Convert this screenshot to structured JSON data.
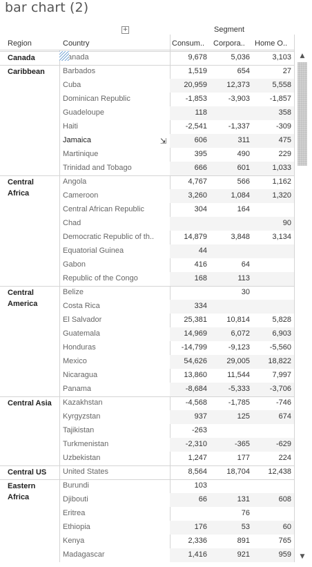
{
  "title": "bar chart (2)",
  "segment_label": "Segment",
  "headers": {
    "region": "Region",
    "country": "Country",
    "consumer": "Consum..",
    "corporate": "Corpora..",
    "home_office": "Home O.."
  },
  "rows": [
    {
      "region": "Canada",
      "country": "anada",
      "v1": "9,678",
      "v2": "5,036",
      "v3": "3,103"
    },
    {
      "region": "Caribbean",
      "country": "Barbados",
      "v1": "1,519",
      "v2": "654",
      "v3": "27"
    },
    {
      "region": "",
      "country": "Cuba",
      "v1": "20,959",
      "v2": "12,373",
      "v3": "5,558"
    },
    {
      "region": "",
      "country": "Dominican Republic",
      "v1": "-1,853",
      "v2": "-3,903",
      "v3": "-1,857"
    },
    {
      "region": "",
      "country": "Guadeloupe",
      "v1": "118",
      "v2": "",
      "v3": "358"
    },
    {
      "region": "",
      "country": "Haiti",
      "v1": "-2,541",
      "v2": "-1,337",
      "v3": "-309"
    },
    {
      "region": "",
      "country": "Jamaica",
      "v1": "606",
      "v2": "311",
      "v3": "475"
    },
    {
      "region": "",
      "country": "Martinique",
      "v1": "395",
      "v2": "490",
      "v3": "229"
    },
    {
      "region": "",
      "country": "Trinidad and Tobago",
      "v1": "666",
      "v2": "601",
      "v3": "1,033"
    },
    {
      "region": "Central Africa",
      "country": "Angola",
      "v1": "4,767",
      "v2": "566",
      "v3": "1,162"
    },
    {
      "region": "",
      "country": "Cameroon",
      "v1": "3,260",
      "v2": "1,084",
      "v3": "1,320"
    },
    {
      "region": "",
      "country": "Central African Republic",
      "v1": "304",
      "v2": "164",
      "v3": ""
    },
    {
      "region": "",
      "country": "Chad",
      "v1": "",
      "v2": "",
      "v3": "90"
    },
    {
      "region": "",
      "country": "Democratic Republic of th..",
      "v1": "14,879",
      "v2": "3,848",
      "v3": "3,134"
    },
    {
      "region": "",
      "country": "Equatorial Guinea",
      "v1": "44",
      "v2": "",
      "v3": ""
    },
    {
      "region": "",
      "country": "Gabon",
      "v1": "416",
      "v2": "64",
      "v3": ""
    },
    {
      "region": "",
      "country": "Republic of the Congo",
      "v1": "168",
      "v2": "113",
      "v3": ""
    },
    {
      "region": "Central America",
      "country": "Belize",
      "v1": "",
      "v2": "30",
      "v3": ""
    },
    {
      "region": "",
      "country": "Costa Rica",
      "v1": "334",
      "v2": "",
      "v3": ""
    },
    {
      "region": "",
      "country": "El Salvador",
      "v1": "25,381",
      "v2": "10,814",
      "v3": "5,828"
    },
    {
      "region": "",
      "country": "Guatemala",
      "v1": "14,969",
      "v2": "6,072",
      "v3": "6,903"
    },
    {
      "region": "",
      "country": "Honduras",
      "v1": "-14,799",
      "v2": "-9,123",
      "v3": "-5,560"
    },
    {
      "region": "",
      "country": "Mexico",
      "v1": "54,626",
      "v2": "29,005",
      "v3": "18,822"
    },
    {
      "region": "",
      "country": "Nicaragua",
      "v1": "13,860",
      "v2": "11,544",
      "v3": "7,997"
    },
    {
      "region": "",
      "country": "Panama",
      "v1": "-8,684",
      "v2": "-5,333",
      "v3": "-3,706"
    },
    {
      "region": "Central Asia",
      "country": "Kazakhstan",
      "v1": "-4,568",
      "v2": "-1,785",
      "v3": "-746"
    },
    {
      "region": "",
      "country": "Kyrgyzstan",
      "v1": "937",
      "v2": "125",
      "v3": "674"
    },
    {
      "region": "",
      "country": "Tajikistan",
      "v1": "-263",
      "v2": "",
      "v3": ""
    },
    {
      "region": "",
      "country": "Turkmenistan",
      "v1": "-2,310",
      "v2": "-365",
      "v3": "-629"
    },
    {
      "region": "",
      "country": "Uzbekistan",
      "v1": "1,247",
      "v2": "177",
      "v3": "224"
    },
    {
      "region": "Central US",
      "country": "United States",
      "v1": "8,564",
      "v2": "18,704",
      "v3": "12,438"
    },
    {
      "region": "Eastern Africa",
      "country": "Burundi",
      "v1": "103",
      "v2": "",
      "v3": ""
    },
    {
      "region": "",
      "country": "Djibouti",
      "v1": "66",
      "v2": "131",
      "v3": "608"
    },
    {
      "region": "",
      "country": "Eritrea",
      "v1": "",
      "v2": "76",
      "v3": ""
    },
    {
      "region": "",
      "country": "Ethiopia",
      "v1": "176",
      "v2": "53",
      "v3": "60"
    },
    {
      "region": "",
      "country": "Kenya",
      "v1": "2,336",
      "v2": "891",
      "v3": "765"
    },
    {
      "region": "",
      "country": "Madagascar",
      "v1": "1,416",
      "v2": "921",
      "v3": "959"
    }
  ]
}
